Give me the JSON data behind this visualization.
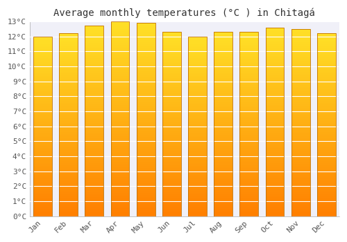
{
  "months": [
    "Jan",
    "Feb",
    "Mar",
    "Apr",
    "May",
    "Jun",
    "Jul",
    "Aug",
    "Sep",
    "Oct",
    "Nov",
    "Dec"
  ],
  "values": [
    12.0,
    12.2,
    12.7,
    13.0,
    12.9,
    12.3,
    12.0,
    12.3,
    12.3,
    12.6,
    12.5,
    12.2
  ],
  "bar_color_top": "#FFD040",
  "bar_color_bottom": "#F08000",
  "bar_edge_color": "#C07000",
  "title": "Average monthly temperatures (°C ) in Chitagá",
  "ylim": [
    0,
    13
  ],
  "ytick_step": 1,
  "background_color": "#FFFFFF",
  "plot_bg_color": "#F0F0F8",
  "grid_color": "#FFFFFF",
  "title_fontsize": 10,
  "tick_fontsize": 8,
  "font_family": "monospace"
}
